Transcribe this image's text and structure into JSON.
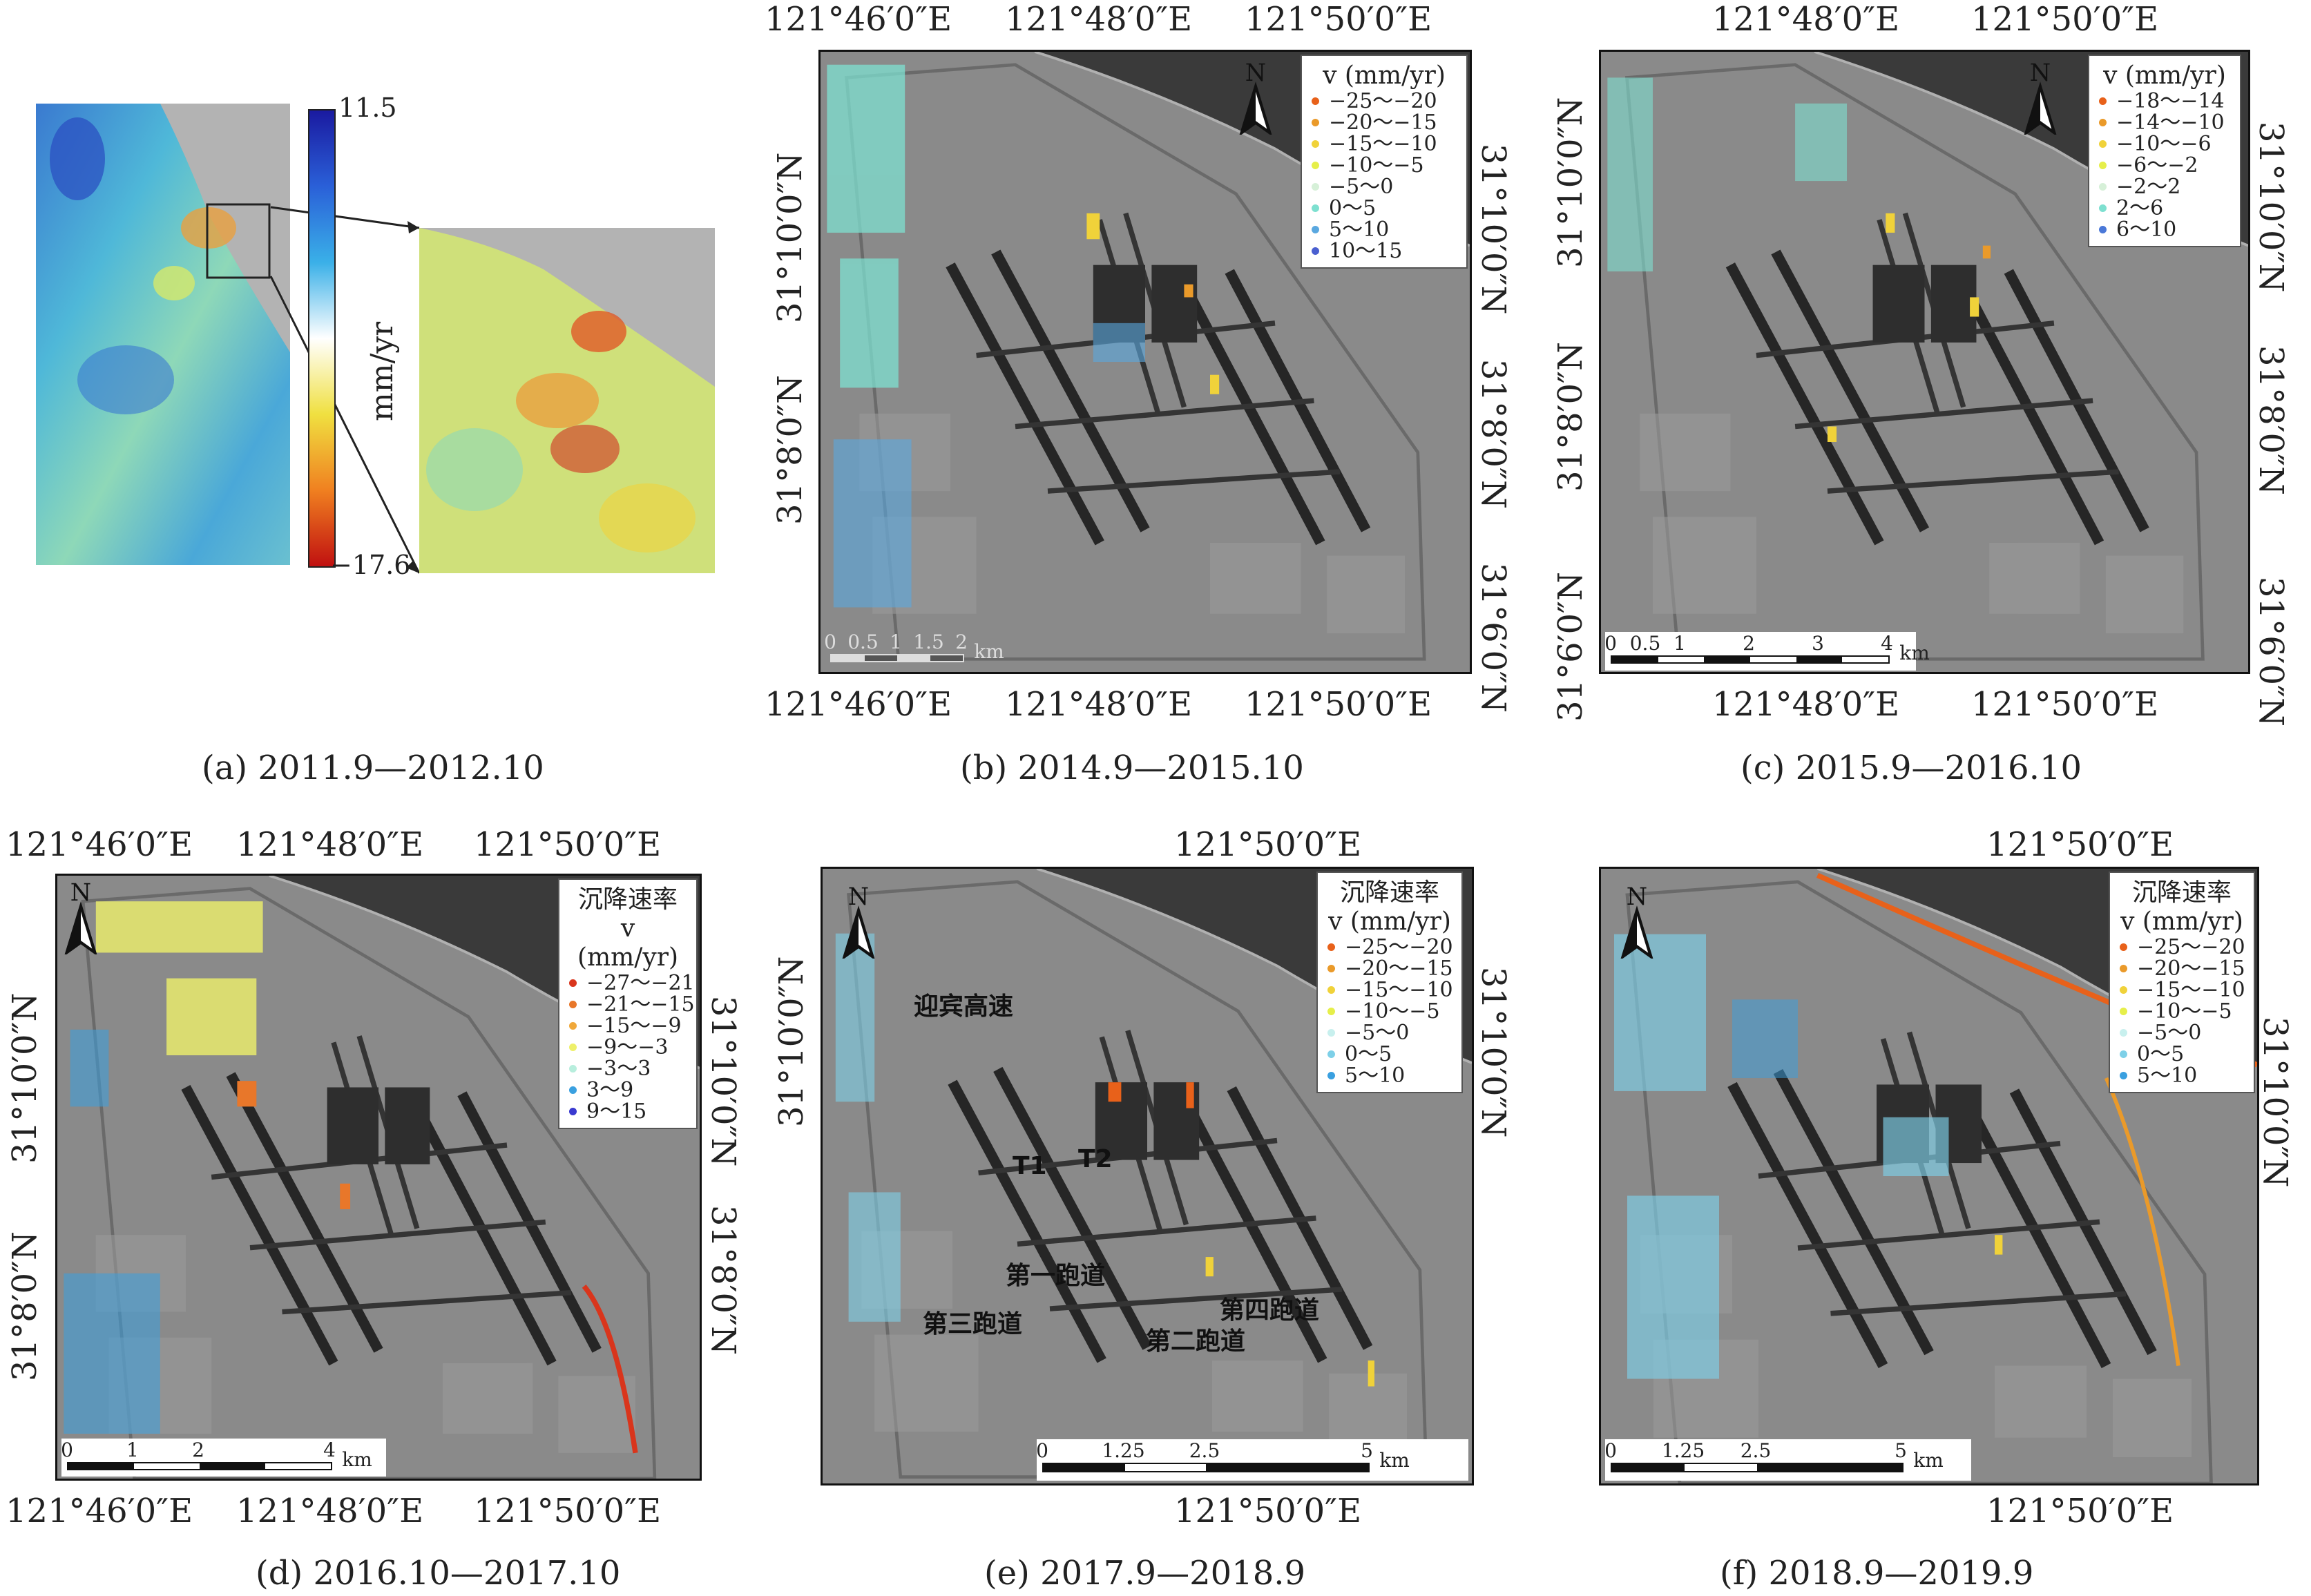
{
  "panels": {
    "a": {
      "caption": "(a) 2011.9—2012.10",
      "colorbar": {
        "max": "11.5",
        "min": "−17.6",
        "unit": "mm/yr"
      }
    },
    "b": {
      "caption": "(b) 2014.9—2015.10",
      "top_lon": [
        "121°46′0″E",
        "121°48′0″E",
        "121°50′0″E"
      ],
      "bottom_lon": [
        "121°46′0″E",
        "121°48′0″E",
        "121°50′0″E"
      ],
      "left_lat": [
        "31°10′0″N",
        "31°8′0″N"
      ],
      "right_lat": [
        "31°10′0″N",
        "31°8′0″N",
        "31°6′0″N"
      ],
      "legend_title": "v (mm/yr)",
      "legend": [
        {
          "label": "−25～−20",
          "color": "#e8611a"
        },
        {
          "label": "−20～−15",
          "color": "#ea9a2a"
        },
        {
          "label": "−15～−10",
          "color": "#f0d23a"
        },
        {
          "label": "−10～−5",
          "color": "#e6ef4a"
        },
        {
          "label": "−5～0",
          "color": "#d6f0d8"
        },
        {
          "label": "0～5",
          "color": "#7ee0d0"
        },
        {
          "label": "5～10",
          "color": "#5aa8e0"
        },
        {
          "label": "10～15",
          "color": "#4a5fd0"
        }
      ],
      "scale_labels": [
        "0",
        "0.5",
        "1",
        "1.5",
        "2"
      ],
      "scale_unit": "km",
      "north": "N"
    },
    "c": {
      "caption": "(c) 2015.9—2016.10",
      "top_lon": [
        "121°48′0″E",
        "121°50′0″E"
      ],
      "bottom_lon": [
        "121°48′0″E",
        "121°50′0″E"
      ],
      "left_lat": [
        "31°10′0″N",
        "31°8′0″N",
        "31°6′0″N"
      ],
      "right_lat": [
        "31°10′0″N",
        "31°8′0″N",
        "31°6′0″N"
      ],
      "legend_title": "v (mm/yr)",
      "legend": [
        {
          "label": "−18～−14",
          "color": "#e8611a"
        },
        {
          "label": "−14～−10",
          "color": "#ea9a2a"
        },
        {
          "label": "−10～−6",
          "color": "#f0d23a"
        },
        {
          "label": "−6～−2",
          "color": "#e6ef4a"
        },
        {
          "label": "−2～2",
          "color": "#d6f0d8"
        },
        {
          "label": "2～6",
          "color": "#7ee0d0"
        },
        {
          "label": "6～10",
          "color": "#4a78d8"
        }
      ],
      "scale_labels": [
        "0",
        "0.5",
        "1",
        "2",
        "3",
        "4"
      ],
      "scale_unit": "km",
      "north": "N"
    },
    "d": {
      "caption": "(d) 2016.10—2017.10",
      "top_lon": [
        "121°46′0″E",
        "121°48′0″E",
        "121°50′0″E"
      ],
      "bottom_lon": [
        "121°46′0″E",
        "121°48′0″E",
        "121°50′0″E"
      ],
      "left_lat": [
        "31°10′0″N",
        "31°8′0″N"
      ],
      "right_lat": [
        "31°10′0″N",
        "31°8′0″N"
      ],
      "legend_heading": "沉降速率",
      "legend_title": "v (mm/yr)",
      "legend": [
        {
          "label": "−27～−21",
          "color": "#d9351c"
        },
        {
          "label": "−21～−15",
          "color": "#e8772a"
        },
        {
          "label": "−15～−9",
          "color": "#f0a83a"
        },
        {
          "label": "−9～−3",
          "color": "#eef06a"
        },
        {
          "label": "−3～3",
          "color": "#b8eedd"
        },
        {
          "label": "3～9",
          "color": "#3aa0e0"
        },
        {
          "label": "9～15",
          "color": "#3a3ad0"
        }
      ],
      "scale_labels": [
        "0",
        "1",
        "2",
        "4"
      ],
      "scale_unit": "km",
      "north": "N"
    },
    "e": {
      "caption": "(e) 2017.9—2018.9",
      "top_lon": [
        "121°50′0″E"
      ],
      "bottom_lon": [
        "121°50′0″E"
      ],
      "left_lat": [
        "31°10′0″N"
      ],
      "right_lat": [
        "31°10′0″N"
      ],
      "legend_heading": "沉降速率",
      "legend_title": "v (mm/yr)",
      "legend": [
        {
          "label": "−25～−20",
          "color": "#e8611a"
        },
        {
          "label": "−20～−15",
          "color": "#ea9a2a"
        },
        {
          "label": "−15～−10",
          "color": "#f0d23a"
        },
        {
          "label": "−10～−5",
          "color": "#e6ef4a"
        },
        {
          "label": "−5～0",
          "color": "#c8f0ee"
        },
        {
          "label": "0～5",
          "color": "#7ed0e8"
        },
        {
          "label": "5～10",
          "color": "#3aa0e0"
        }
      ],
      "annotations": {
        "highway": "迎宾高速",
        "t1": "T1",
        "t2": "T2",
        "runway1": "第一跑道",
        "runway2": "第二跑道",
        "runway3": "第三跑道",
        "runway4": "第四跑道"
      },
      "scale_labels": [
        "0",
        "1.25",
        "2.5",
        "5"
      ],
      "scale_unit": "km",
      "north": "N"
    },
    "f": {
      "caption": "(f) 2018.9—2019.9",
      "top_lon": [
        "121°50′0″E"
      ],
      "bottom_lon": [
        "121°50′0″E"
      ],
      "right_lat": [
        "31°10′0″N"
      ],
      "legend_heading": "沉降速率",
      "legend_title": "v (mm/yr)",
      "legend": [
        {
          "label": "−25～−20",
          "color": "#e8611a"
        },
        {
          "label": "−20～−15",
          "color": "#ea9a2a"
        },
        {
          "label": "−15～−10",
          "color": "#f0d23a"
        },
        {
          "label": "−10～−5",
          "color": "#e6ef4a"
        },
        {
          "label": "−5～0",
          "color": "#c8f0ee"
        },
        {
          "label": "0～5",
          "color": "#7ed0e8"
        },
        {
          "label": "5～10",
          "color": "#3aa0e0"
        }
      ],
      "scale_labels": [
        "0",
        "1.25",
        "2.5",
        "5"
      ],
      "scale_unit": "km",
      "north": "N"
    }
  }
}
